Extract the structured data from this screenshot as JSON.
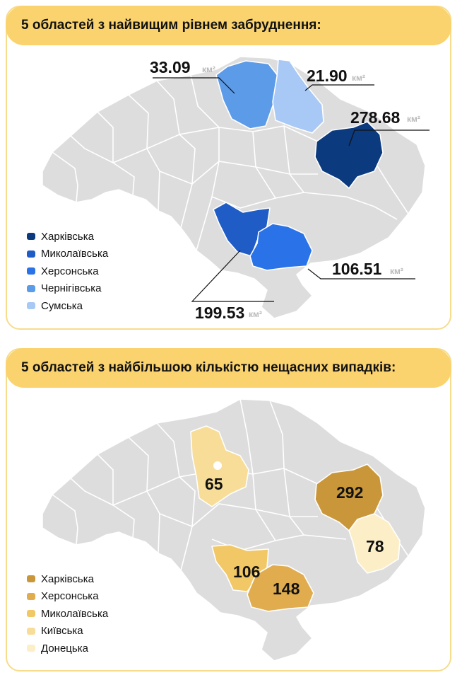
{
  "panels": [
    {
      "title": "5 областей з найвищим рівнем забруднення:",
      "legend": [
        {
          "name": "Харківська",
          "color": "#0b3a7e"
        },
        {
          "name": "Миколаївська",
          "color": "#1f5cc5"
        },
        {
          "name": "Херсонська",
          "color": "#2a72e8"
        },
        {
          "name": "Чернігівська",
          "color": "#5c9be8"
        },
        {
          "name": "Сумська",
          "color": "#a8c8f5"
        }
      ],
      "labels": [
        {
          "region": "Чернігівська",
          "value": "33.09",
          "unit": "км²"
        },
        {
          "region": "Сумська",
          "value": "21.90",
          "unit": "км²"
        },
        {
          "region": "Харківська",
          "value": "278.68",
          "unit": "км²"
        },
        {
          "region": "Херсонська",
          "value": "106.51",
          "unit": "км²"
        },
        {
          "region": "Миколаївська",
          "value": "199.53",
          "unit": "км²"
        }
      ]
    },
    {
      "title": "5 областей з найбільшою кількістю нещасних випадків:",
      "legend": [
        {
          "name": "Харківська",
          "color": "#c9973a"
        },
        {
          "name": "Херсонська",
          "color": "#e0ac4e"
        },
        {
          "name": "Миколаївська",
          "color": "#f2c866"
        },
        {
          "name": "Київська",
          "color": "#f8dd98"
        },
        {
          "name": "Донецька",
          "color": "#fcefc8"
        }
      ],
      "labels": [
        {
          "region": "Київська",
          "value": "65"
        },
        {
          "region": "Харківська",
          "value": "292"
        },
        {
          "region": "Донецька",
          "value": "78"
        },
        {
          "region": "Миколаївська",
          "value": "106"
        },
        {
          "region": "Херсонська",
          "value": "148"
        }
      ]
    }
  ],
  "colors": {
    "header": "#fad36f",
    "panel_border": "#f7dc8c",
    "map_grey": "#dddddd"
  }
}
